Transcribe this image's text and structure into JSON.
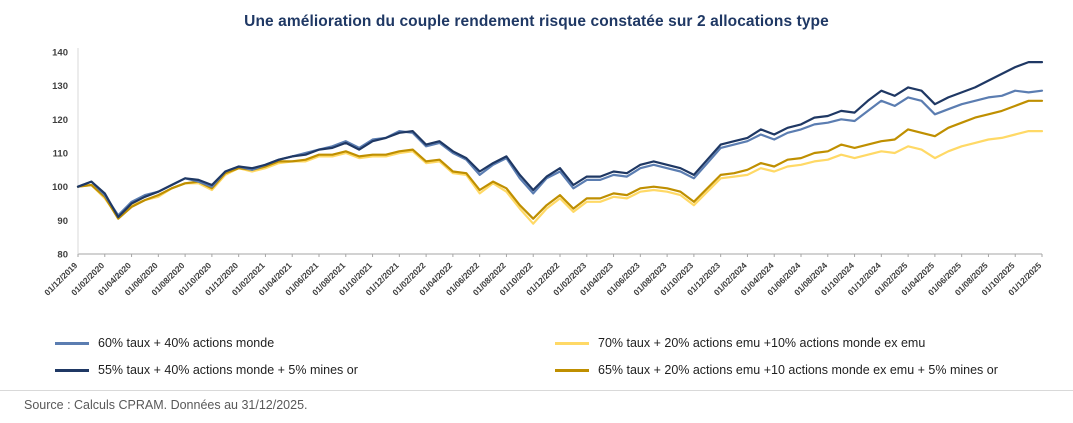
{
  "title": "Une amélioration du couple rendement risque constatée sur 2 allocations type",
  "source": {
    "text": "Source : Calculs CPRAM. Données au 31/12/2025."
  },
  "chart_data": {
    "type": "line",
    "title": "Une amélioration du couple rendement risque constatée sur 2 allocations type",
    "xlabel": "",
    "ylabel": "",
    "ylim": [
      80,
      140
    ],
    "yticks": [
      80,
      90,
      100,
      110,
      120,
      130,
      140
    ],
    "grid": false,
    "legend_position": "bottom",
    "x_frequency": "monthly",
    "x_tick_labels": [
      "01/12/2019",
      "01/02/2020",
      "01/04/2020",
      "01/06/2020",
      "01/08/2020",
      "01/10/2020",
      "01/12/2020",
      "01/02/2021",
      "01/04/2021",
      "01/06/2021",
      "01/08/2021",
      "01/10/2021",
      "01/12/2021",
      "01/02/2022",
      "01/04/2022",
      "01/06/2022",
      "01/08/2022",
      "01/10/2022",
      "01/12/2022",
      "01/02/2023",
      "01/04/2023",
      "01/06/2023",
      "01/08/2023",
      "01/10/2023",
      "01/12/2023",
      "01/02/2024",
      "01/04/2024",
      "01/06/2024",
      "01/08/2024",
      "01/10/2024",
      "01/12/2024",
      "01/02/2025",
      "01/04/2025",
      "01/06/2025",
      "01/08/2025",
      "01/10/2025",
      "01/12/2025"
    ],
    "series": [
      {
        "id": "60-taux-40-actions-monde",
        "name": "60% taux + 40% actions monde",
        "color": "#5B7DB1",
        "width": 2.2,
        "z": 3,
        "values": [
          100,
          101.5,
          97.5,
          91.5,
          95.5,
          97.5,
          98.5,
          100.5,
          102.5,
          101.5,
          100,
          104.5,
          106,
          105,
          106.5,
          108,
          109,
          110,
          111,
          112,
          113.5,
          111.5,
          114,
          114.5,
          116.5,
          116,
          112,
          113,
          110,
          108,
          103.5,
          106.5,
          108.5,
          102.5,
          98,
          102.5,
          104.5,
          99.5,
          102,
          102,
          103.5,
          103,
          105.5,
          106.5,
          105.5,
          104.5,
          102.5,
          107,
          111.5,
          112.5,
          113.5,
          115.5,
          114,
          116,
          117,
          118.5,
          119,
          120,
          119.5,
          122.5,
          125.5,
          124,
          126.5,
          125.5,
          121.5,
          123,
          124.5,
          125.5,
          126.5,
          127,
          128.5,
          128,
          128.5
        ]
      },
      {
        "id": "55-taux-40-actions-monde-5-mines-or",
        "name": "55% taux + 40% actions monde  + 5% mines or",
        "color": "#1F3864",
        "width": 2.2,
        "z": 4,
        "values": [
          100,
          101.5,
          98,
          91,
          95,
          97,
          98.5,
          100.5,
          102.5,
          102,
          100.5,
          104.5,
          106,
          105.5,
          106.5,
          108,
          109,
          109.5,
          111,
          111.5,
          113,
          111,
          113.5,
          114.5,
          116,
          116.5,
          112.5,
          113.5,
          110.5,
          108.5,
          104.5,
          107,
          109,
          103.5,
          99,
          103,
          105.5,
          100.5,
          103,
          103,
          104.5,
          104,
          106.5,
          107.5,
          106.5,
          105.5,
          103.5,
          108,
          112.5,
          113.5,
          114.5,
          117,
          115.5,
          117.5,
          118.5,
          120.5,
          121,
          122.5,
          122,
          125.5,
          128.5,
          127,
          129.5,
          128.5,
          124.5,
          126.5,
          128,
          129.5,
          131.5,
          133.5,
          135.5,
          137,
          137
        ]
      },
      {
        "id": "70-taux-20-actions-emu-10-actions-monde-ex-emu",
        "name": "70%  taux + 20% actions emu +10% actions monde ex emu",
        "color": "#FFD966",
        "width": 2.2,
        "z": 1,
        "values": [
          100,
          100.5,
          96.5,
          91,
          94.5,
          96,
          97,
          99.5,
          101,
          101,
          99,
          103.5,
          105.5,
          104.5,
          105.5,
          107,
          107.5,
          107.5,
          109,
          109,
          110,
          108.5,
          109,
          109,
          110,
          110.5,
          107,
          107.5,
          104,
          103.5,
          98,
          101,
          98.5,
          93.5,
          89,
          93.5,
          96.5,
          92.5,
          95.5,
          95.5,
          97,
          96.5,
          98.5,
          99,
          98.5,
          97.5,
          94.5,
          98.5,
          102.5,
          103,
          103.5,
          105.5,
          104.5,
          106,
          106.5,
          107.5,
          108,
          109.5,
          108.5,
          109.5,
          110.5,
          110,
          112,
          111,
          108.5,
          110.5,
          112,
          113,
          114,
          114.5,
          115.5,
          116.5,
          116.5
        ]
      },
      {
        "id": "65-taux-20-actions-emu-10-actions-monde-ex-emu-5-mines-or",
        "name": "65% taux + 20% actions emu +10 actions monde ex emu + 5% mines or",
        "color": "#BF8F00",
        "width": 2.2,
        "z": 2,
        "values": [
          100,
          100.5,
          97,
          90.5,
          94,
          96,
          97.5,
          99.5,
          101,
          101.5,
          99.5,
          104,
          105.5,
          105,
          106,
          107.5,
          107.5,
          108,
          109.5,
          109.5,
          110.5,
          109,
          109.5,
          109.5,
          110.5,
          111,
          107.5,
          108,
          104.5,
          104,
          99,
          101.5,
          99.5,
          94.5,
          90.5,
          94.5,
          97.5,
          93.5,
          96.5,
          96.5,
          98,
          97.5,
          99.5,
          100,
          99.5,
          98.5,
          95.5,
          99.5,
          103.5,
          104,
          105,
          107,
          106,
          108,
          108.5,
          110,
          110.5,
          112.5,
          111.5,
          112.5,
          113.5,
          114,
          117,
          116,
          115,
          117.5,
          119,
          120.5,
          121.5,
          122.5,
          124,
          125.5,
          125.5
        ]
      }
    ],
    "axis_color": "#A6A6A6"
  }
}
